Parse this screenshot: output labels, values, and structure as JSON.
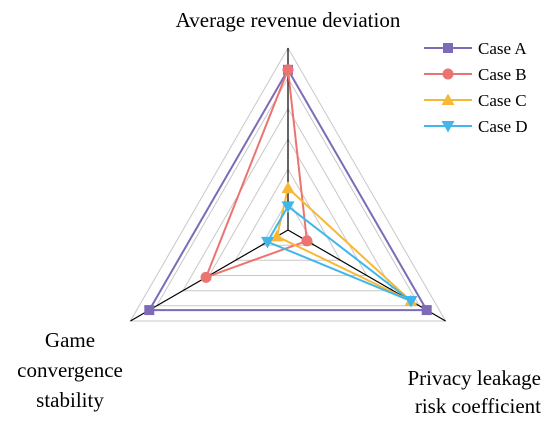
{
  "chart_data": {
    "type": "radar",
    "title": "",
    "axes": [
      {
        "label_lines": [
          "Average revenue deviation"
        ]
      },
      {
        "label_lines": [
          "Privacy leakage",
          "risk coefficient"
        ]
      },
      {
        "label_lines": [
          "Game",
          "convergence",
          "stability"
        ]
      }
    ],
    "range": [
      0,
      1
    ],
    "gridlines": 6,
    "legend": "top-right",
    "series": [
      {
        "name": "Case A",
        "values": [
          0.88,
          0.88,
          0.88
        ],
        "color": "#7d6bb7",
        "marker": "square"
      },
      {
        "name": "Case B",
        "values": [
          0.88,
          0.12,
          0.52
        ],
        "color": "#ec7470",
        "marker": "circle"
      },
      {
        "name": "Case C",
        "values": [
          0.23,
          0.78,
          0.07
        ],
        "color": "#f7b838",
        "marker": "triangle-up"
      },
      {
        "name": "Case D",
        "values": [
          0.13,
          0.78,
          0.13
        ],
        "color": "#41b6e9",
        "marker": "triangle-down"
      }
    ]
  }
}
